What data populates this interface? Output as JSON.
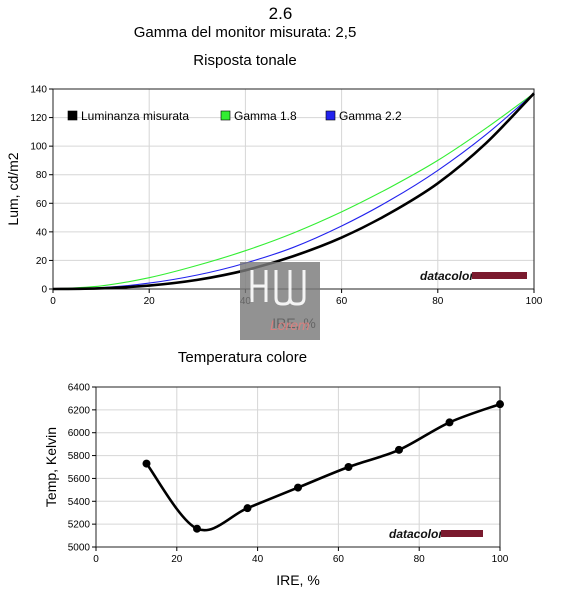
{
  "header": {
    "title": "2.6",
    "gamma_measured": "Gamma del monitor misurata: 2,5"
  },
  "chart_data": [
    {
      "type": "line",
      "title": "Risposta tonale",
      "xlabel": "IRE, %",
      "ylabel": "Lum, cd/m2",
      "xlim": [
        0,
        100
      ],
      "ylim": [
        0,
        140
      ],
      "xticks": [
        "0",
        "20",
        "40",
        "60",
        "80",
        "100"
      ],
      "yticks": [
        "0",
        "20",
        "40",
        "60",
        "80",
        "100",
        "120",
        "140"
      ],
      "grid": true,
      "legend_position": "top-left",
      "x": [
        0,
        10,
        20,
        30,
        40,
        50,
        60,
        70,
        80,
        90,
        100
      ],
      "series": [
        {
          "name": "Luminanza misurata",
          "color": "#000000",
          "values": [
            0,
            0.5,
            2.4,
            6.4,
            13.1,
            23.0,
            36.0,
            53.0,
            74.0,
            102.0,
            137.0
          ]
        },
        {
          "name": "Gamma 1.8",
          "color": "#33ee33",
          "values": [
            0,
            2.2,
            7.9,
            16.5,
            26.8,
            39.2,
            54.0,
            71.0,
            90.0,
            112.5,
            137.0
          ]
        },
        {
          "name": "Gamma 2.2",
          "color": "#2222ee",
          "values": [
            0,
            0.9,
            4.1,
            9.8,
            18.1,
            29.2,
            44.1,
            62.0,
            83.0,
            108.0,
            137.0
          ]
        }
      ],
      "branding": "datacolor"
    },
    {
      "type": "line",
      "title": "Temperatura colore",
      "xlabel": "IRE, %",
      "ylabel": "Temp, Kelvin",
      "xlim": [
        0,
        100
      ],
      "ylim": [
        5000,
        6400
      ],
      "xticks": [
        "0",
        "20",
        "40",
        "60",
        "80",
        "100"
      ],
      "yticks": [
        "5000",
        "5200",
        "5400",
        "5600",
        "5800",
        "6000",
        "6200",
        "6400"
      ],
      "grid": true,
      "series": [
        {
          "color": "#000000",
          "x": [
            12.5,
            25,
            37.5,
            50,
            62.5,
            75,
            87.5,
            100
          ],
          "values": [
            5730,
            5160,
            5340,
            5520,
            5700,
            5850,
            6090,
            6250
          ]
        }
      ],
      "branding": "datacolor"
    }
  ],
  "watermark": {
    "text": "Lorem",
    "colors": {
      "box": "#7a7a7a",
      "accent": "#d9807f"
    }
  }
}
